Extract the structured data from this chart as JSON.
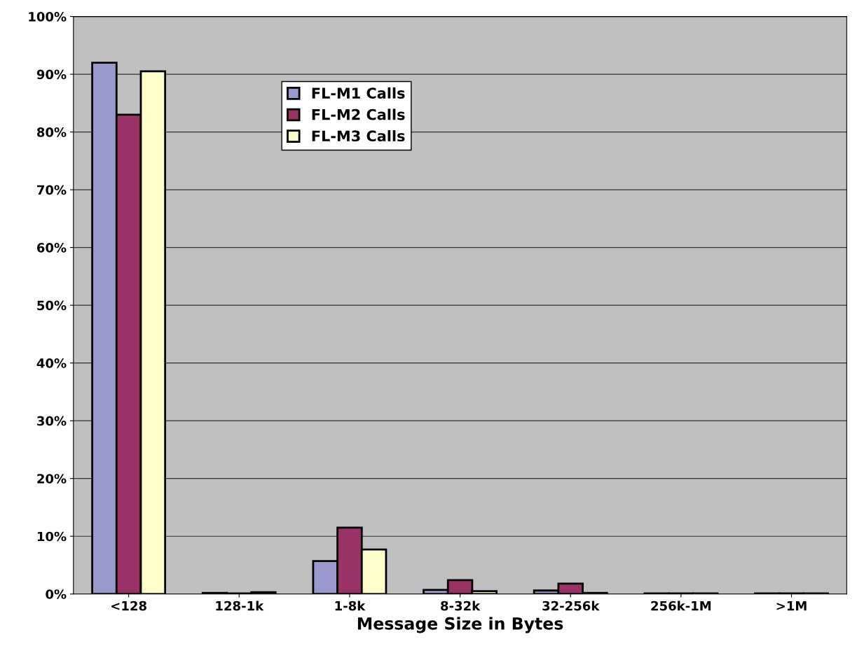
{
  "chart_data": {
    "type": "bar",
    "xlabel": "Message Size in Bytes",
    "categories": [
      "<128",
      "128-1k",
      "1-8k",
      "8-32k",
      "32-256k",
      "256k-1M",
      ">1M"
    ],
    "series": [
      {
        "name": "FL-M1 Calls",
        "color": "#9999cc",
        "values": [
          92,
          0.2,
          5.7,
          0.7,
          0.6,
          0.1,
          0.1
        ]
      },
      {
        "name": "FL-M2 Calls",
        "color": "#993366",
        "values": [
          83,
          0.1,
          11.5,
          2.4,
          1.8,
          0.1,
          0.1
        ]
      },
      {
        "name": "FL-M3 Calls",
        "color": "#ffffcc",
        "values": [
          90.5,
          0.3,
          7.7,
          0.5,
          0.2,
          0.1,
          0.1
        ]
      }
    ],
    "ylim": [
      0,
      100
    ],
    "yticks": [
      {
        "value": 0,
        "label": "0%"
      },
      {
        "value": 10,
        "label": "10%"
      },
      {
        "value": 20,
        "label": "20%"
      },
      {
        "value": 30,
        "label": "30%"
      },
      {
        "value": 40,
        "label": "40%"
      },
      {
        "value": 50,
        "label": "50%"
      },
      {
        "value": 60,
        "label": "60%"
      },
      {
        "value": 70,
        "label": "70%"
      },
      {
        "value": 80,
        "label": "80%"
      },
      {
        "value": 90,
        "label": "90%"
      },
      {
        "value": 100,
        "label": "100%"
      }
    ],
    "grid": "y",
    "legend": "top left"
  }
}
